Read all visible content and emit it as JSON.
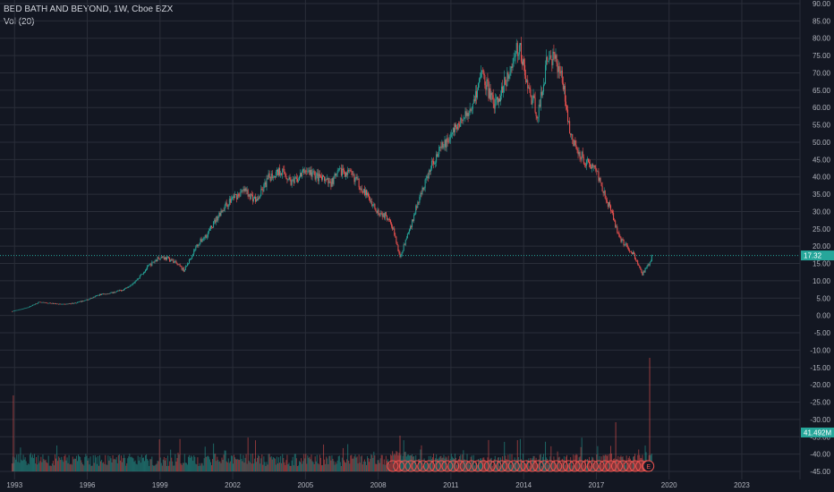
{
  "header": {
    "title": "BED BATH AND BEYOND, 1W, Cboe BZX",
    "indicator": "Vol (20)"
  },
  "colors": {
    "background": "#131722",
    "grid": "#2a2e39",
    "up": "#26a69a",
    "down": "#ef5350",
    "price_line": "#26a69a",
    "earnings": "#ef5350"
  },
  "chart_data": {
    "type": "candlestick",
    "title": "BED BATH AND BEYOND, 1W, Cboe BZX",
    "y_ticks": [
      "90.00",
      "85.00",
      "80.00",
      "75.00",
      "70.00",
      "65.00",
      "60.00",
      "55.00",
      "50.00",
      "45.00",
      "40.00",
      "35.00",
      "30.00",
      "25.00",
      "20.00",
      "15.00",
      "10.00",
      "5.00",
      "0.00",
      "-5.00",
      "-10.00",
      "-15.00",
      "-20.00",
      "-25.00",
      "-30.00",
      "-35.00",
      "-40.00",
      "-45.00"
    ],
    "x_ticks": [
      "1993",
      "1996",
      "1999",
      "2002",
      "2005",
      "2008",
      "2011",
      "2014",
      "2017",
      "2020",
      "2023"
    ],
    "ylim": [
      -45,
      90
    ],
    "xlim": [
      1992.4,
      2025.4
    ],
    "price_series": [
      {
        "x": 1992.9,
        "y": 1.2
      },
      {
        "x": 1993.5,
        "y": 2.2
      },
      {
        "x": 1994.0,
        "y": 3.8
      },
      {
        "x": 1994.5,
        "y": 3.5
      },
      {
        "x": 1995.0,
        "y": 3.2
      },
      {
        "x": 1995.5,
        "y": 3.6
      },
      {
        "x": 1996.0,
        "y": 4.5
      },
      {
        "x": 1996.5,
        "y": 6.0
      },
      {
        "x": 1997.0,
        "y": 6.5
      },
      {
        "x": 1997.5,
        "y": 7.5
      },
      {
        "x": 1998.0,
        "y": 10.0
      },
      {
        "x": 1998.5,
        "y": 14.0
      },
      {
        "x": 1999.0,
        "y": 17.0
      },
      {
        "x": 1999.5,
        "y": 16.0
      },
      {
        "x": 2000.0,
        "y": 13.0
      },
      {
        "x": 2000.5,
        "y": 20.0
      },
      {
        "x": 2001.0,
        "y": 24.0
      },
      {
        "x": 2001.5,
        "y": 30.0
      },
      {
        "x": 2002.0,
        "y": 34.0
      },
      {
        "x": 2002.5,
        "y": 36.0
      },
      {
        "x": 2003.0,
        "y": 33.0
      },
      {
        "x": 2003.5,
        "y": 40.0
      },
      {
        "x": 2004.0,
        "y": 42.0
      },
      {
        "x": 2004.5,
        "y": 38.0
      },
      {
        "x": 2005.0,
        "y": 42.0
      },
      {
        "x": 2005.5,
        "y": 40.0
      },
      {
        "x": 2006.0,
        "y": 38.0
      },
      {
        "x": 2006.5,
        "y": 42.0
      },
      {
        "x": 2007.0,
        "y": 40.0
      },
      {
        "x": 2007.5,
        "y": 35.0
      },
      {
        "x": 2008.0,
        "y": 30.0
      },
      {
        "x": 2008.5,
        "y": 28.0
      },
      {
        "x": 2008.9,
        "y": 17.0
      },
      {
        "x": 2009.3,
        "y": 25.0
      },
      {
        "x": 2009.8,
        "y": 36.0
      },
      {
        "x": 2010.3,
        "y": 45.0
      },
      {
        "x": 2010.8,
        "y": 50.0
      },
      {
        "x": 2011.3,
        "y": 55.0
      },
      {
        "x": 2011.8,
        "y": 60.0
      },
      {
        "x": 2012.3,
        "y": 70.0
      },
      {
        "x": 2012.8,
        "y": 60.0
      },
      {
        "x": 2013.3,
        "y": 68.0
      },
      {
        "x": 2013.8,
        "y": 78.0
      },
      {
        "x": 2014.2,
        "y": 65.0
      },
      {
        "x": 2014.6,
        "y": 58.0
      },
      {
        "x": 2015.0,
        "y": 75.0
      },
      {
        "x": 2015.5,
        "y": 72.0
      },
      {
        "x": 2016.0,
        "y": 50.0
      },
      {
        "x": 2016.5,
        "y": 45.0
      },
      {
        "x": 2017.0,
        "y": 42.0
      },
      {
        "x": 2017.5,
        "y": 32.0
      },
      {
        "x": 2018.0,
        "y": 22.0
      },
      {
        "x": 2018.5,
        "y": 18.0
      },
      {
        "x": 2018.9,
        "y": 12.0
      },
      {
        "x": 2019.2,
        "y": 15.0
      },
      {
        "x": 2019.3,
        "y": 17.32
      }
    ],
    "last_price": "17.32",
    "volume_label": "41.492M",
    "earnings_marker": "E"
  }
}
